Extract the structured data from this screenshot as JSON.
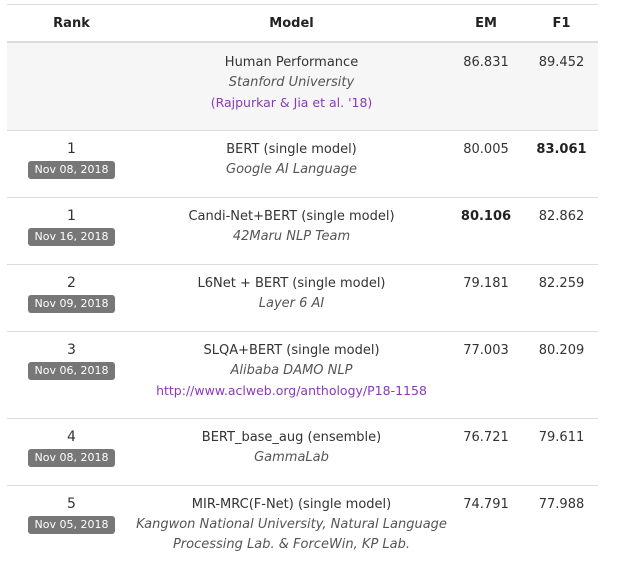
{
  "header": {
    "rank": "Rank",
    "model": "Model",
    "em": "EM",
    "f1": "F1"
  },
  "human": {
    "name": "Human Performance",
    "org": "Stanford University",
    "link": "(Rajpurkar & Jia et al. '18)",
    "em": "86.831",
    "f1": "89.452"
  },
  "rows": [
    {
      "rank": "1",
      "date": "Nov 08, 2018",
      "name": "BERT (single model)",
      "org": "Google AI Language",
      "em": "80.005",
      "f1": "83.061"
    },
    {
      "rank": "1",
      "date": "Nov 16, 2018",
      "name": "Candi-Net+BERT (single model)",
      "org": "42Maru NLP Team",
      "em": "80.106",
      "f1": "82.862"
    },
    {
      "rank": "2",
      "date": "Nov 09, 2018",
      "name": "L6Net + BERT (single model)",
      "org": "Layer 6 AI",
      "em": "79.181",
      "f1": "82.259"
    },
    {
      "rank": "3",
      "date": "Nov 06, 2018",
      "name": "SLQA+BERT (single model)",
      "org": "Alibaba DAMO NLP",
      "link": "http://www.aclweb.org/anthology/P18-1158",
      "em": "77.003",
      "f1": "80.209"
    },
    {
      "rank": "4",
      "date": "Nov 08, 2018",
      "name": "BERT_base_aug (ensemble)",
      "org": "GammaLab",
      "em": "76.721",
      "f1": "79.611"
    },
    {
      "rank": "5",
      "date": "Nov 05, 2018",
      "name": "MIR-MRC(F-Net) (single model)",
      "org": "Kangwon National University, Natural Language Processing Lab. & ForceWin, KP Lab.",
      "em": "74.791",
      "f1": "77.988"
    }
  ],
  "colors": {
    "badge": "#777777",
    "link": "#8a3ab9",
    "human_row_bg": "#f6f6f6"
  }
}
